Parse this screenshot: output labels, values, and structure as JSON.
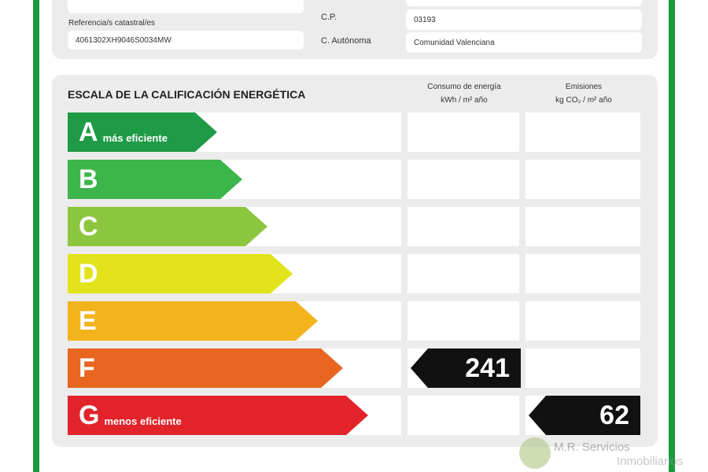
{
  "property": {
    "ref_label": "Referencia/s catastral/es",
    "ref_value": "4061302XH9046S0034MW",
    "cp_label": "C.P.",
    "cp_value": "03193",
    "ca_label": "C. Autónoma",
    "ca_value": "Comunidad Valenciana"
  },
  "scale": {
    "title": "ESCALA DE LA CALIFICACIÓN ENERGÉTICA",
    "col1_title": "Consumo de energía",
    "col1_unit": "kWh / m² año",
    "col2_title": "Emisiones",
    "col2_unit": "kg CO₂ / m² año",
    "rows": [
      {
        "letter": "A",
        "sub": "más eficiente",
        "color": "#1f9a47"
      },
      {
        "letter": "B",
        "sub": "",
        "color": "#3cb54a"
      },
      {
        "letter": "C",
        "sub": "",
        "color": "#8cc63f"
      },
      {
        "letter": "D",
        "sub": "",
        "color": "#e2e31a"
      },
      {
        "letter": "E",
        "sub": "",
        "color": "#f2b31b"
      },
      {
        "letter": "F",
        "sub": "",
        "color": "#e8661f"
      },
      {
        "letter": "G",
        "sub": "menos eficiente",
        "color": "#e2232a"
      }
    ],
    "consumption": {
      "class": "F",
      "value": "241"
    },
    "emissions": {
      "class": "G",
      "value": "62"
    }
  },
  "watermark": {
    "line1": "M.R. Servicios",
    "line2": "Inmobiliarios"
  }
}
